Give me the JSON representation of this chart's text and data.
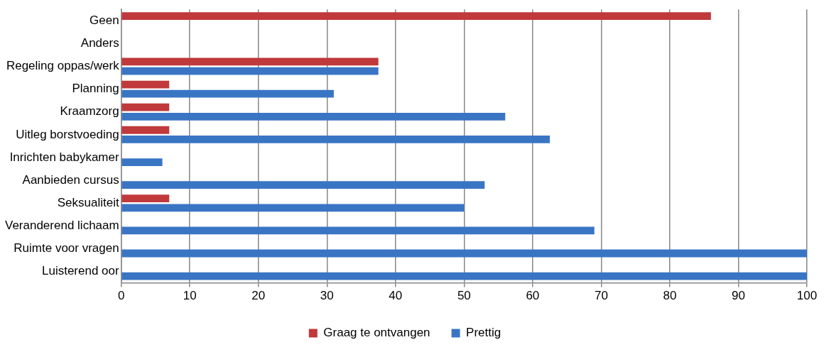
{
  "chart_data": {
    "type": "bar",
    "orientation": "horizontal",
    "categories": [
      "Geen",
      "Anders",
      "Regeling oppas/werk",
      "Planning",
      "Kraamzorg",
      "Uitleg borstvoeding",
      "Inrichten babykamer",
      "Aanbieden cursus",
      "Seksualiteit",
      "Veranderend lichaam",
      "Ruimte voor vragen",
      "Luisterend oor"
    ],
    "series": [
      {
        "name": "Graag te ontvangen",
        "color": "#c0393b",
        "values": [
          86,
          null,
          37.5,
          7,
          7,
          7,
          null,
          null,
          7,
          null,
          null,
          null
        ]
      },
      {
        "name": "Prettig",
        "color": "#3a75c4",
        "values": [
          null,
          null,
          37.5,
          31,
          56,
          62.5,
          6,
          53,
          50,
          69,
          100,
          100
        ]
      }
    ],
    "xlim": [
      0,
      100
    ],
    "xticks": [
      0,
      10,
      20,
      30,
      40,
      50,
      60,
      70,
      80,
      90,
      100
    ],
    "grid": "x",
    "legend": "bottom"
  }
}
